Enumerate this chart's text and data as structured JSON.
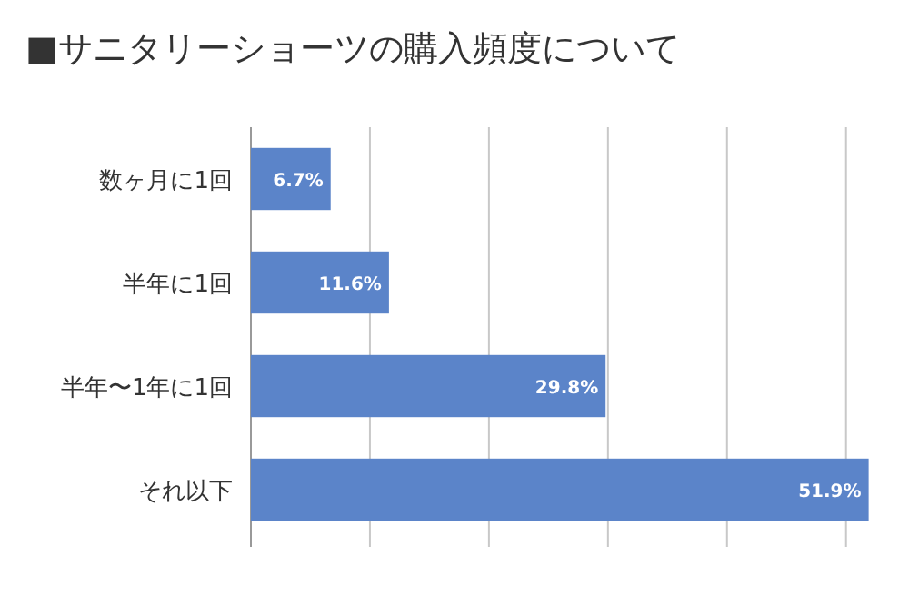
{
  "chart_data": {
    "type": "bar",
    "orientation": "horizontal",
    "title": "■サニタリーショーツの購入頻度について",
    "categories": [
      "数ヶ月に1回",
      "半年に1回",
      "半年〜1年に1回",
      "それ以下"
    ],
    "values": [
      6.7,
      11.6,
      29.8,
      51.9
    ],
    "value_labels": [
      "6.7%",
      "11.6%",
      "29.8%",
      "51.9%"
    ],
    "color": "#5b84c9",
    "xticks": [
      {
        "value": 0,
        "label": null
      },
      {
        "value": 10,
        "label": null
      },
      {
        "value": 20,
        "label": null
      },
      {
        "value": 30,
        "label": null
      },
      {
        "value": 40,
        "label": null
      },
      {
        "value": 50,
        "label": null
      }
    ],
    "grid": "x",
    "tick_labels": "y"
  }
}
